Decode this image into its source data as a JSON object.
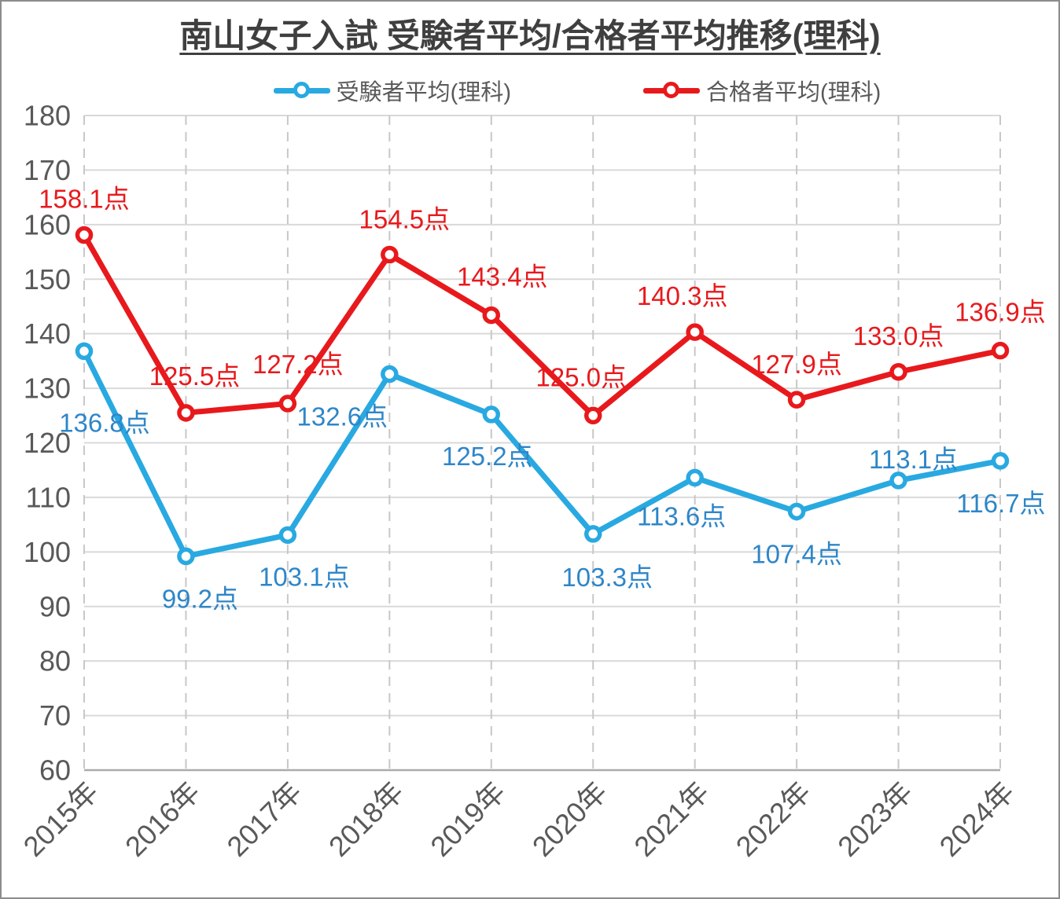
{
  "window": {
    "background": "#ffffff",
    "border_color": "#8c8c8c"
  },
  "chart_data": {
    "type": "line",
    "title": "南山女子入試 受験者平均/合格者平均推移(理科)",
    "categories": [
      "2015年",
      "2016年",
      "2017年",
      "2018年",
      "2019年",
      "2020年",
      "2021年",
      "2022年",
      "2023年",
      "2024年"
    ],
    "ylim": [
      60,
      180
    ],
    "ytick_step": 10,
    "yticks": [
      60,
      70,
      80,
      90,
      100,
      110,
      120,
      130,
      140,
      150,
      160,
      170,
      180
    ],
    "xlabel": "",
    "ylabel": "",
    "unit_suffix": "点",
    "grid": {
      "horizontal": "solid",
      "vertical": "dashed",
      "show": true
    },
    "legend_position": "top",
    "axis_text_color": "#595959",
    "gridline_color": "#d9d9d9",
    "dashed_gridline_color": "#c8c8c8",
    "axis_line_color": "#ababab",
    "series": [
      {
        "name": "受験者平均(理科)",
        "color": "#29a9e1",
        "label_color": "#2e86c8",
        "values": [
          136.8,
          99.2,
          103.1,
          132.6,
          125.2,
          103.3,
          113.6,
          107.4,
          113.1,
          116.7
        ],
        "labels": [
          "136.8点",
          "99.2点",
          "103.1点",
          "132.6点",
          "125.2点",
          "103.3点",
          "113.6点",
          "107.4点",
          "113.1点",
          "116.7点"
        ],
        "label_offsets": [
          [
            26,
            91
          ],
          [
            18,
            54
          ],
          [
            21,
            53
          ],
          [
            -60,
            54
          ],
          [
            -5,
            53
          ],
          [
            18,
            55
          ],
          [
            -17,
            49
          ],
          [
            0,
            54
          ],
          [
            19,
            -27
          ],
          [
            1,
            54
          ]
        ]
      },
      {
        "name": "合格者平均(理科)",
        "color": "#e8191c",
        "label_color": "#e8191c",
        "values": [
          158.1,
          125.5,
          127.2,
          154.5,
          143.4,
          125.0,
          140.3,
          127.9,
          133.0,
          136.9
        ],
        "labels": [
          "158.1点",
          "125.5点",
          "127.2点",
          "154.5点",
          "143.4点",
          "125.0点",
          "140.3点",
          "127.9点",
          "133.0点",
          "136.9点"
        ],
        "label_offsets": [
          [
            0,
            -46
          ],
          [
            11,
            -47
          ],
          [
            13,
            -50
          ],
          [
            19,
            -45
          ],
          [
            14,
            -49
          ],
          [
            -15,
            -49
          ],
          [
            -16,
            -46
          ],
          [
            0,
            -45
          ],
          [
            0,
            -46
          ],
          [
            0,
            -49
          ]
        ]
      }
    ]
  }
}
